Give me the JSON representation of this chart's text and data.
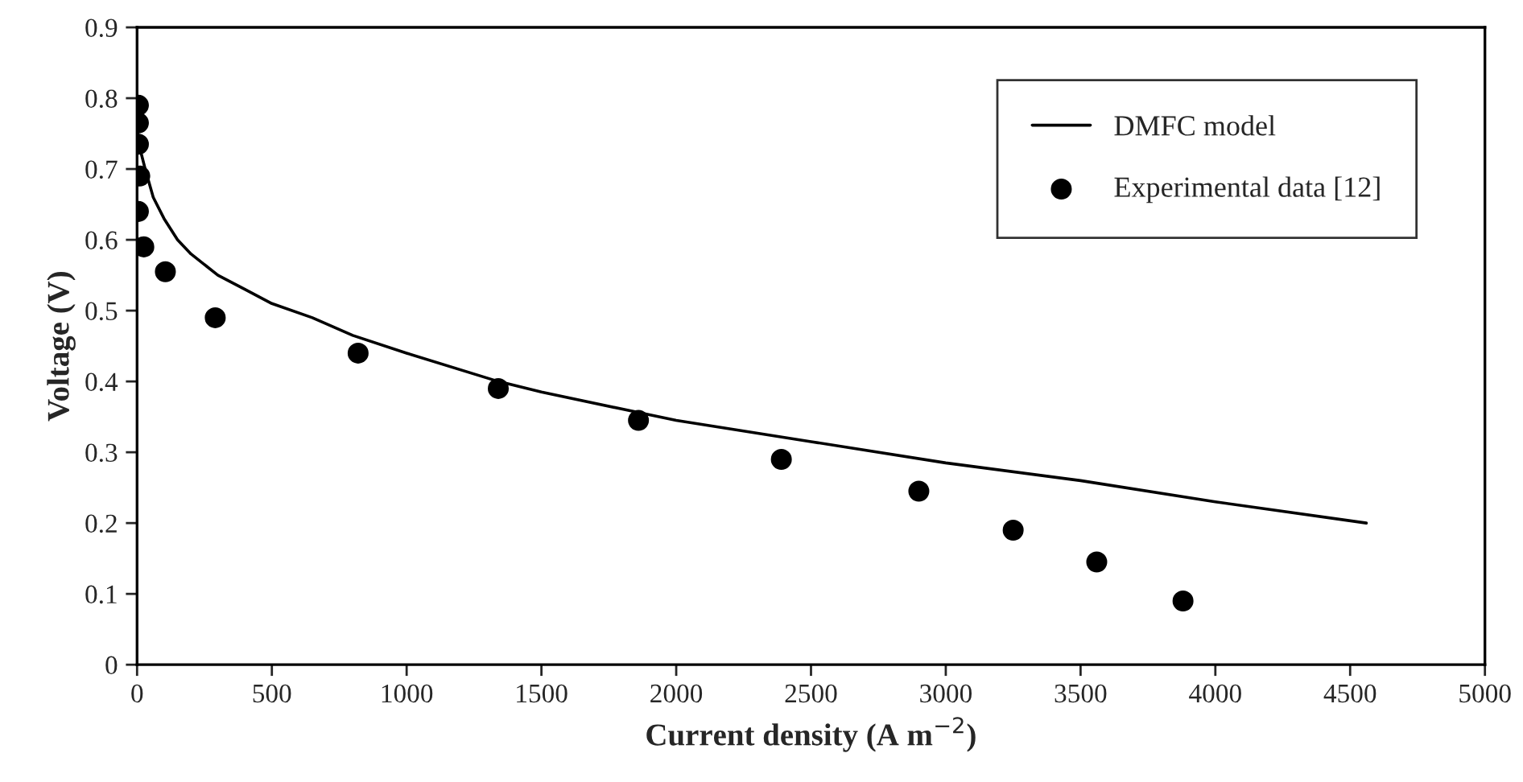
{
  "chart_data": {
    "type": "line",
    "xlabel": "Current density (A m$^{−2}$)",
    "ylabel": "Voltage (V)",
    "xlim": [
      0,
      5000
    ],
    "ylim": [
      0,
      0.9
    ],
    "xticks": [
      0,
      500,
      1000,
      1500,
      2000,
      2500,
      3000,
      3500,
      4000,
      4500,
      5000
    ],
    "yticks": [
      0,
      0.1,
      0.2,
      0.3,
      0.4,
      0.5,
      0.6,
      0.7,
      0.8,
      0.9
    ],
    "grid": false,
    "legend": "top right",
    "series": [
      {
        "name": "DMFC model",
        "color": "#000000",
        "line_style": "solid",
        "marker": "none",
        "x": [
          0,
          10,
          30,
          60,
          100,
          150,
          200,
          300,
          400,
          500,
          650,
          800,
          1000,
          1340,
          1500,
          2000,
          2500,
          3000,
          3500,
          4000,
          4560
        ],
        "values": [
          0.76,
          0.73,
          0.7,
          0.66,
          0.63,
          0.6,
          0.58,
          0.55,
          0.53,
          0.51,
          0.49,
          0.465,
          0.44,
          0.4,
          0.385,
          0.345,
          0.315,
          0.285,
          0.26,
          0.23,
          0.2
        ]
      },
      {
        "name": "Experimental data [12]",
        "type": "scatter",
        "color": "#000000",
        "marker": "circle",
        "x": [
          5,
          5,
          5,
          10,
          5,
          25,
          105,
          290,
          820,
          1340,
          1860,
          2390,
          2900,
          3250,
          3560,
          3880
        ],
        "values": [
          0.79,
          0.765,
          0.735,
          0.69,
          0.64,
          0.59,
          0.555,
          0.49,
          0.44,
          0.39,
          0.345,
          0.29,
          0.245,
          0.19,
          0.145,
          0.09
        ]
      }
    ]
  }
}
